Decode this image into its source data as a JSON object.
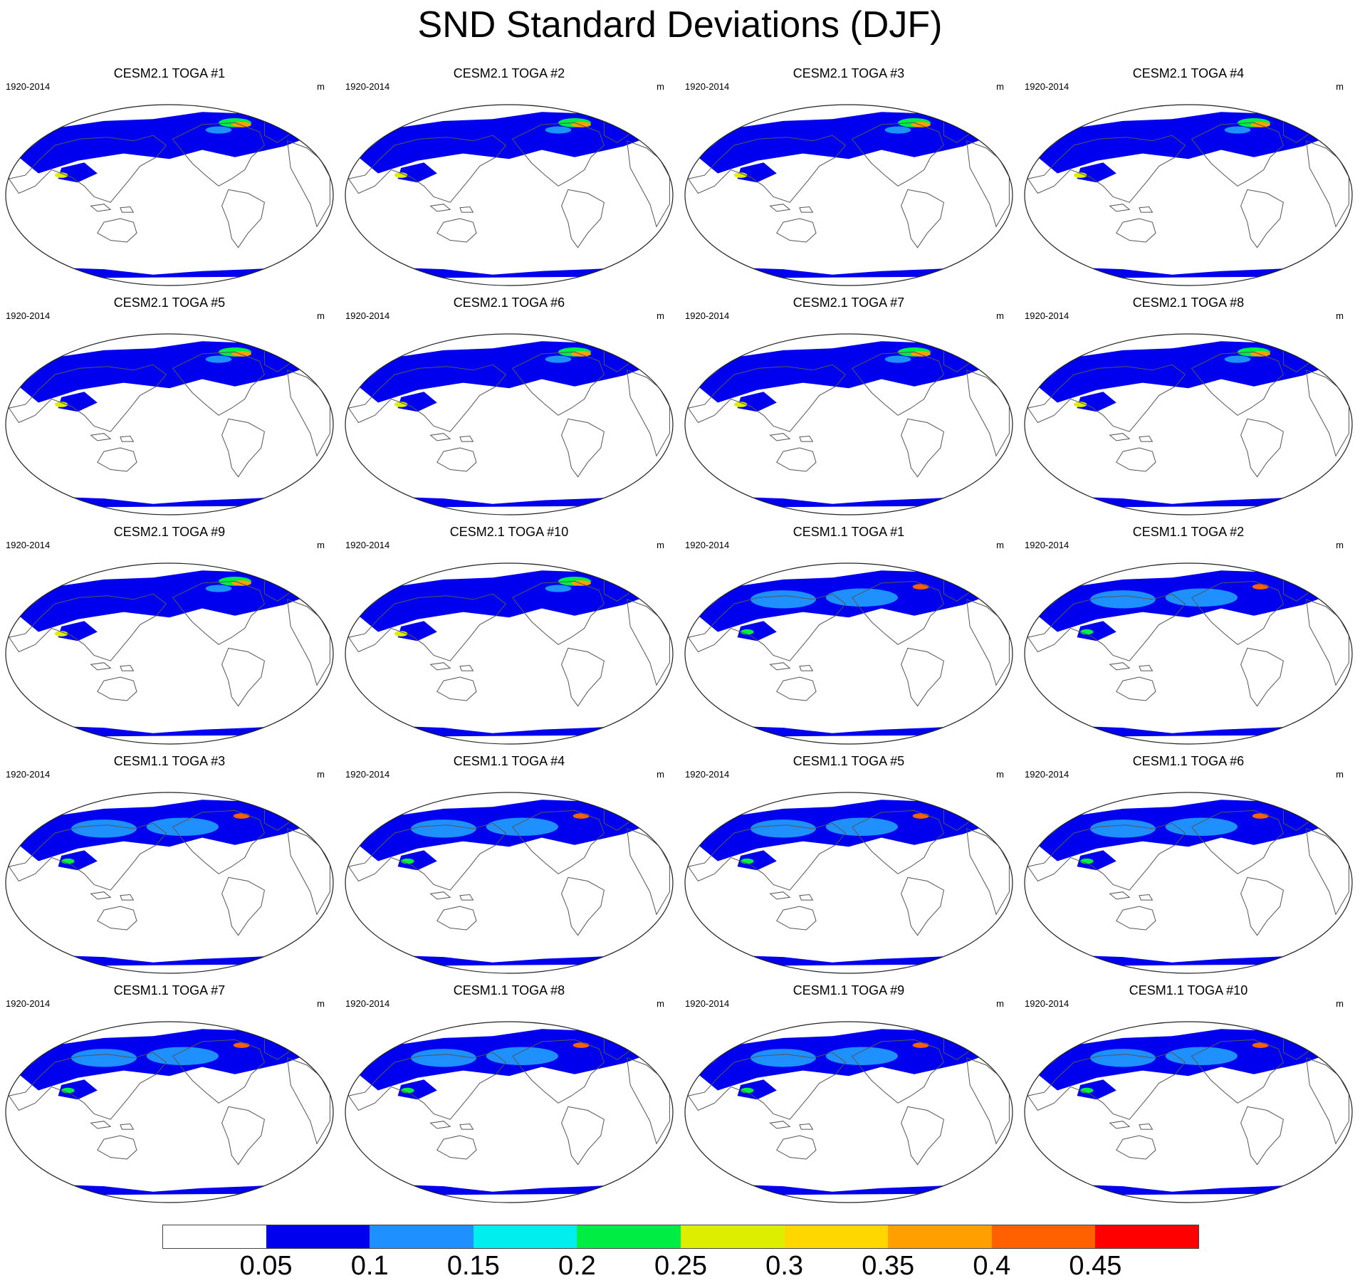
{
  "figure": {
    "title": "SND Standard Deviations (DJF)"
  },
  "panels": [
    {
      "title": "CESM2.1 TOGA #1",
      "period": "1920-2014",
      "units": "m",
      "model": "cesm2"
    },
    {
      "title": "CESM2.1 TOGA #2",
      "period": "1920-2014",
      "units": "m",
      "model": "cesm2"
    },
    {
      "title": "CESM2.1 TOGA #3",
      "period": "1920-2014",
      "units": "m",
      "model": "cesm2"
    },
    {
      "title": "CESM2.1 TOGA #4",
      "period": "1920-2014",
      "units": "m",
      "model": "cesm2"
    },
    {
      "title": "CESM2.1 TOGA #5",
      "period": "1920-2014",
      "units": "m",
      "model": "cesm2"
    },
    {
      "title": "CESM2.1 TOGA #6",
      "period": "1920-2014",
      "units": "m",
      "model": "cesm2"
    },
    {
      "title": "CESM2.1 TOGA #7",
      "period": "1920-2014",
      "units": "m",
      "model": "cesm2"
    },
    {
      "title": "CESM2.1 TOGA #8",
      "period": "1920-2014",
      "units": "m",
      "model": "cesm2"
    },
    {
      "title": "CESM2.1 TOGA #9",
      "period": "1920-2014",
      "units": "m",
      "model": "cesm2"
    },
    {
      "title": "CESM2.1 TOGA #10",
      "period": "1920-2014",
      "units": "m",
      "model": "cesm2"
    },
    {
      "title": "CESM1.1 TOGA #1",
      "period": "1920-2014",
      "units": "m",
      "model": "cesm1"
    },
    {
      "title": "CESM1.1 TOGA #2",
      "period": "1920-2014",
      "units": "m",
      "model": "cesm1"
    },
    {
      "title": "CESM1.1 TOGA #3",
      "period": "1920-2014",
      "units": "m",
      "model": "cesm1"
    },
    {
      "title": "CESM1.1 TOGA #4",
      "period": "1920-2014",
      "units": "m",
      "model": "cesm1"
    },
    {
      "title": "CESM1.1 TOGA #5",
      "period": "1920-2014",
      "units": "m",
      "model": "cesm1"
    },
    {
      "title": "CESM1.1 TOGA #6",
      "period": "1920-2014",
      "units": "m",
      "model": "cesm1"
    },
    {
      "title": "CESM1.1 TOGA #7",
      "period": "1920-2014",
      "units": "m",
      "model": "cesm1"
    },
    {
      "title": "CESM1.1 TOGA #8",
      "period": "1920-2014",
      "units": "m",
      "model": "cesm1"
    },
    {
      "title": "CESM1.1 TOGA #9",
      "period": "1920-2014",
      "units": "m",
      "model": "cesm1"
    },
    {
      "title": "CESM1.1 TOGA #10",
      "period": "1920-2014",
      "units": "m",
      "model": "cesm1"
    }
  ],
  "colorbar": {
    "labels": [
      "0.05",
      "0.1",
      "0.15",
      "0.2",
      "0.25",
      "0.3",
      "0.35",
      "0.4",
      "0.45"
    ],
    "colors": [
      "#ffffff",
      "#0000ee",
      "#1e90ff",
      "#00eeee",
      "#00ee44",
      "#ddee00",
      "#ffd700",
      "#ffa000",
      "#ff6000",
      "#ff0000"
    ]
  }
}
